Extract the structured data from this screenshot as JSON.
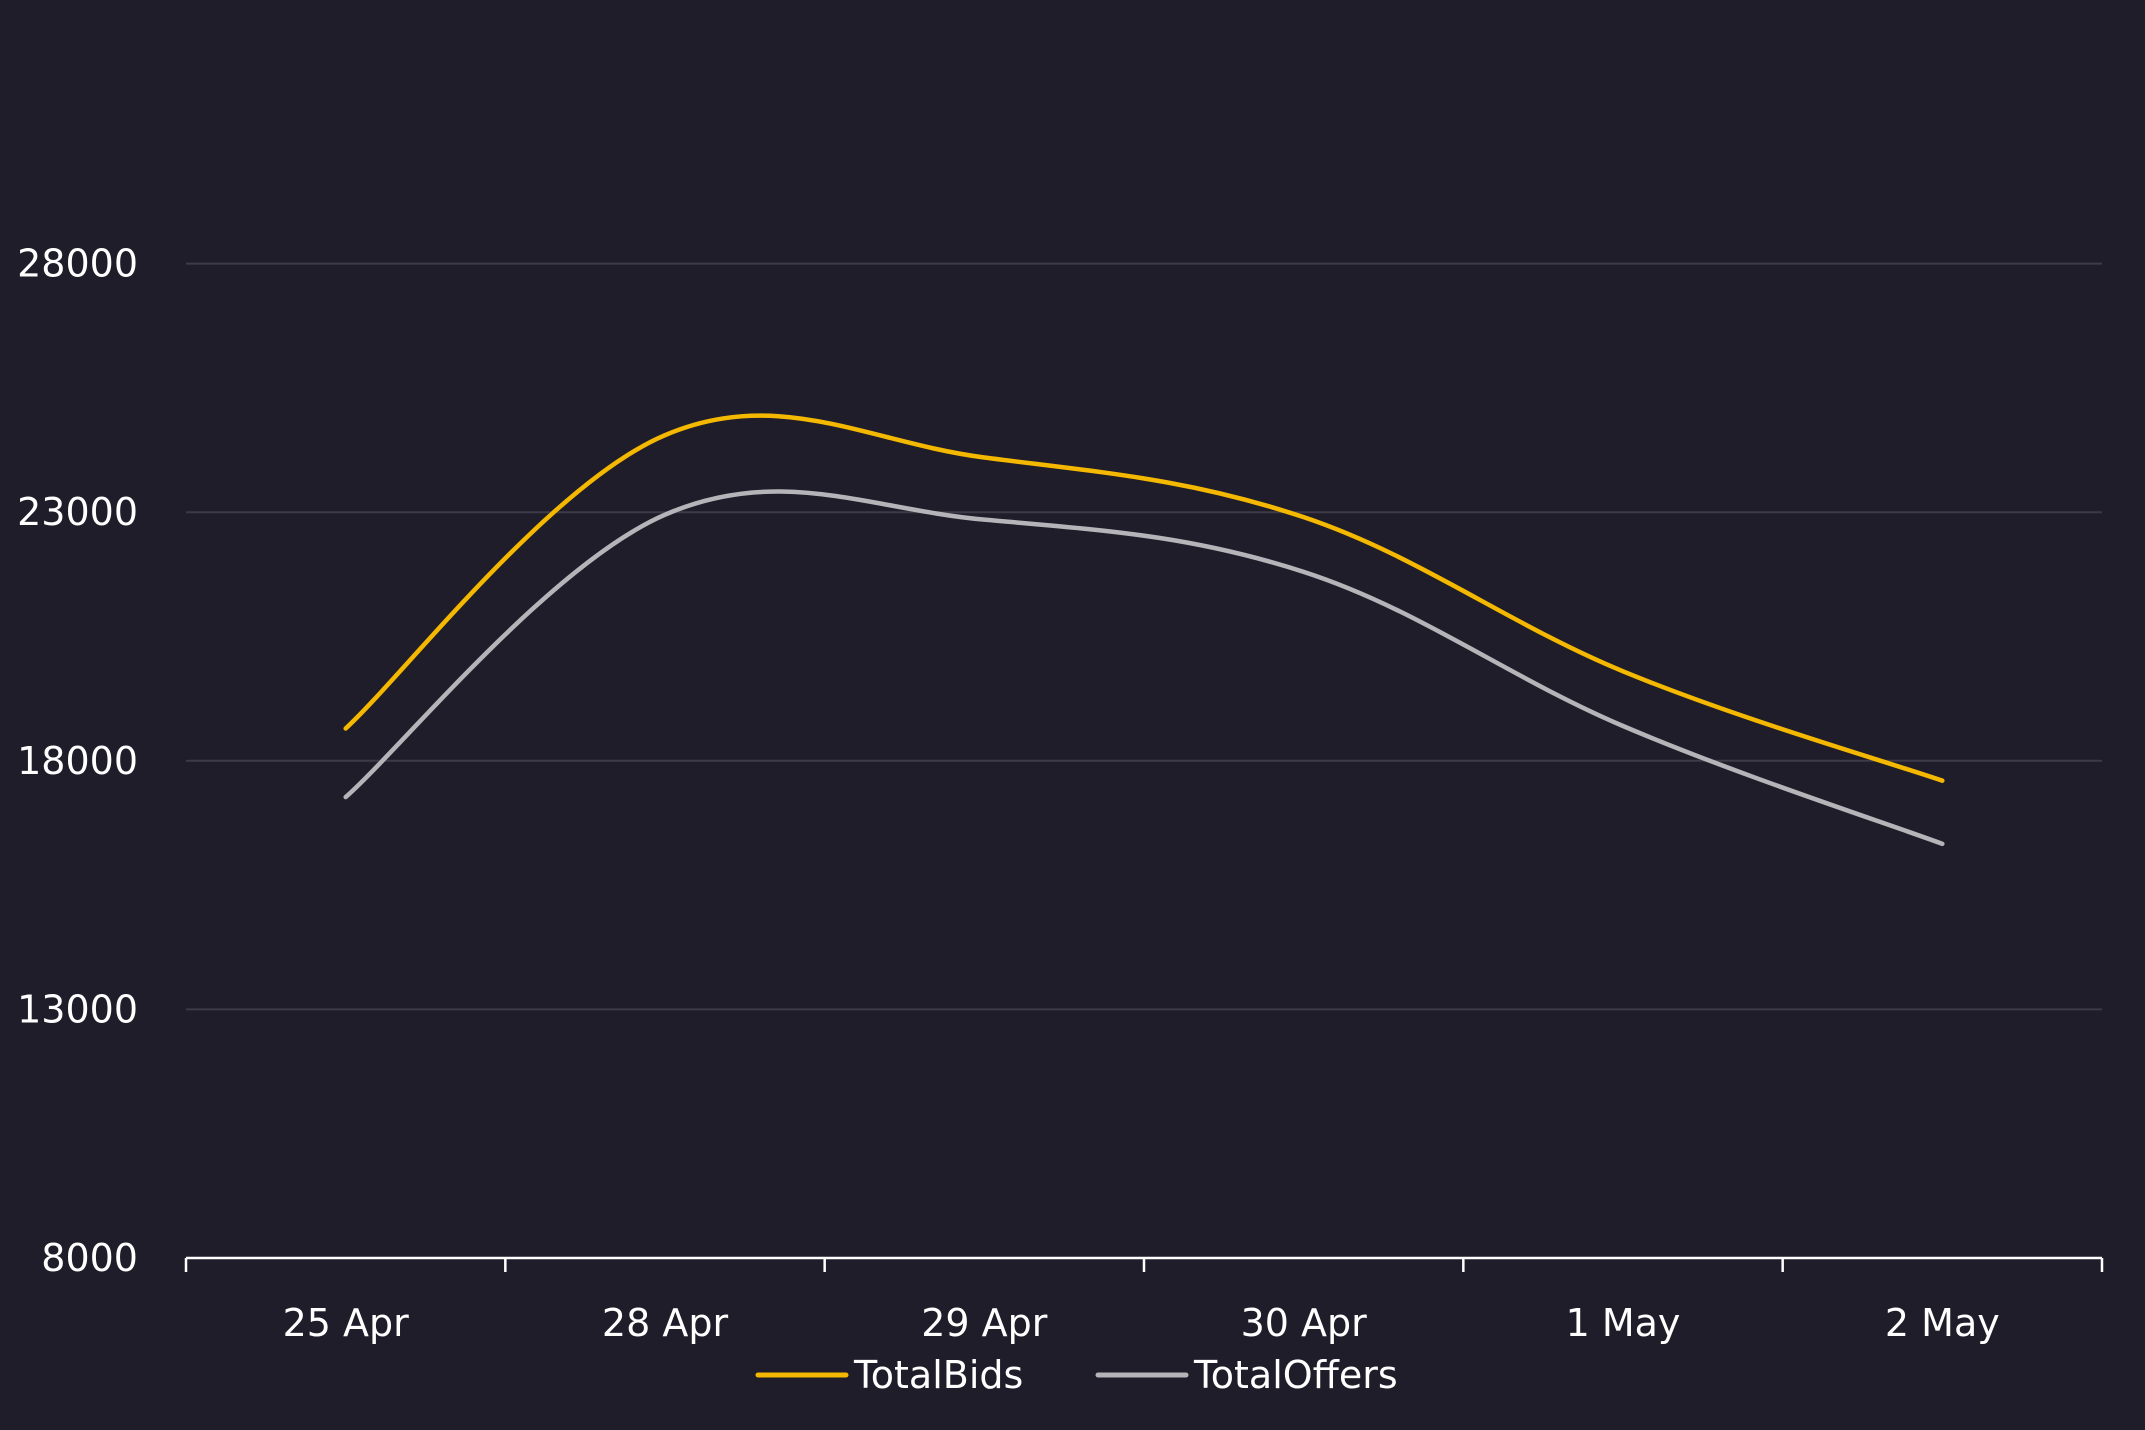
{
  "chart_data": {
    "type": "line",
    "categories": [
      "25 Apr",
      "28 Apr",
      "29 Apr",
      "30 Apr",
      "1 May",
      "2 May"
    ],
    "series": [
      {
        "name": "TotalBids",
        "color": "#f5b800",
        "values": [
          18650,
          24550,
          24100,
          22900,
          19800,
          17600
        ]
      },
      {
        "name": "TotalOffers",
        "color": "#b5b5b9",
        "values": [
          17270,
          22950,
          22850,
          21800,
          18700,
          16330
        ]
      }
    ],
    "yticks": [
      8000,
      13000,
      18000,
      23000,
      28000
    ],
    "ylim": [
      8000,
      33000
    ],
    "grid": true,
    "legend": "bottom-center",
    "title": "",
    "xlabel": "",
    "ylabel": ""
  }
}
